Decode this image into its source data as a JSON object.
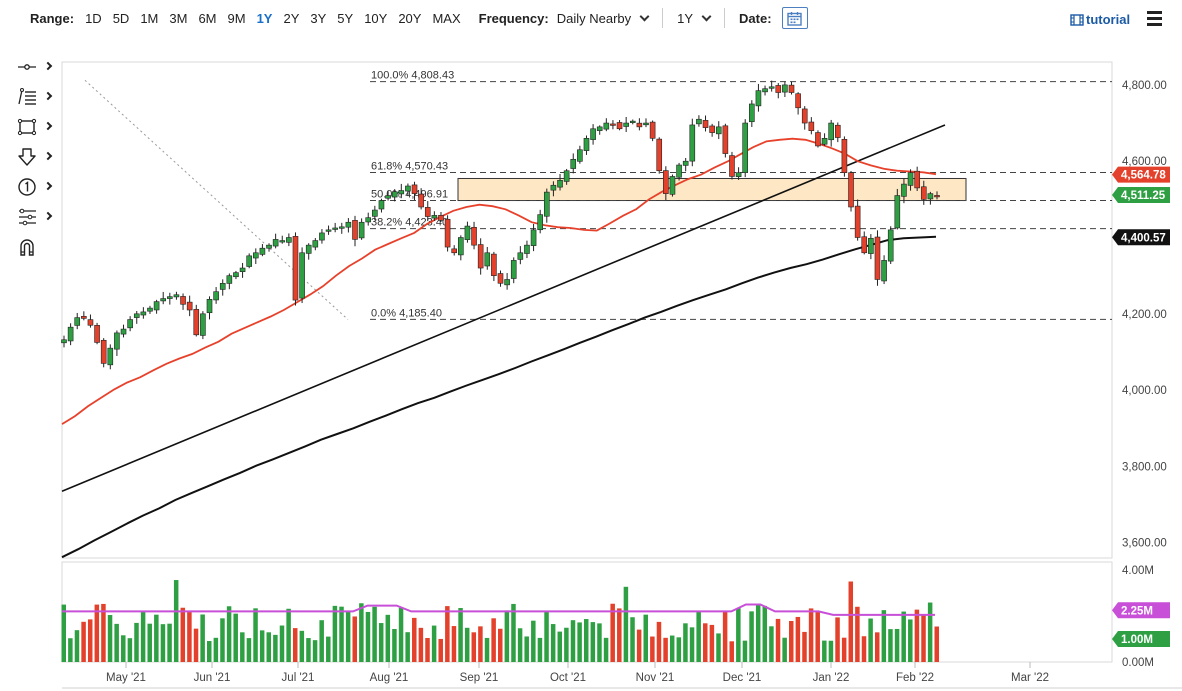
{
  "toolbar": {
    "range_label": "Range:",
    "ranges": [
      "1D",
      "5D",
      "1M",
      "3M",
      "6M",
      "9M",
      "1Y",
      "2Y",
      "3Y",
      "5Y",
      "10Y",
      "20Y",
      "MAX"
    ],
    "active_range": "1Y",
    "frequency_label": "Frequency:",
    "frequency_value": "Daily Nearby",
    "period_value": "1Y",
    "date_label": "Date:",
    "tutorial_label": "tutorial"
  },
  "side_tools": [
    "crosshair-icon",
    "line-tools-icon",
    "shape-tools-icon",
    "arrow-down-icon",
    "number-marker-icon",
    "fibonacci-tools-icon",
    "magnet-icon"
  ],
  "colors": {
    "up": "#2ea043",
    "down": "#e3412b",
    "ma_short": "#e8412b",
    "ma_long": "#111111",
    "volume_avg": "#c84fd8",
    "zone_fill": "#fde7c4",
    "link": "#1b5aa5"
  },
  "chart_data": {
    "type": "candlestick",
    "y_ticks": [
      "4,800.00",
      "4,600.00",
      "4,400.00",
      "4,200.00",
      "4,000.00",
      "3,800.00",
      "3,600.00"
    ],
    "ylim": [
      3560,
      4860
    ],
    "x_ticks": [
      "May '21",
      "Jun '21",
      "Jul '21",
      "Aug '21",
      "Sep '21",
      "Oct '21",
      "Nov '21",
      "Dec '21",
      "Jan '22",
      "Feb '22",
      "Mar '22"
    ],
    "fib_levels": [
      {
        "label": "100.0% 4,808.43",
        "value": 4808.43
      },
      {
        "label": "61.8% 4,570.43",
        "value": 4570.43
      },
      {
        "label": "50.0% 4,496.91",
        "value": 4496.91
      },
      {
        "label": "38.2% 4,423.40",
        "value": 4423.4
      },
      {
        "label": "0.0% 4,185.40",
        "value": 4185.4
      }
    ],
    "price_tags": [
      {
        "label": "4,564.78",
        "value": 4564.78,
        "color": "#e3412b"
      },
      {
        "label": "4,511.25",
        "value": 4511.25,
        "color": "#2ea043"
      },
      {
        "label": "4,400.57",
        "value": 4400.57,
        "color": "#111111"
      }
    ],
    "volume": {
      "y_ticks": [
        "4.00M",
        "0.00M"
      ],
      "tags": [
        {
          "label": "2.25M",
          "value": 2.25,
          "color": "#c84fd8"
        },
        {
          "label": "1.00M",
          "value": 1.0,
          "color": "#2ea043"
        }
      ]
    },
    "series_close": [
      4132,
      4165,
      4190,
      4188,
      4170,
      4125,
      4070,
      4110,
      4150,
      4160,
      4185,
      4200,
      4205,
      4215,
      4232,
      4240,
      4245,
      4250,
      4225,
      4210,
      4145,
      4200,
      4238,
      4258,
      4280,
      4300,
      4308,
      4320,
      4352,
      4360,
      4372,
      4380,
      4395,
      4392,
      4400,
      4236,
      4360,
      4380,
      4392,
      4412,
      4420,
      4425,
      4428,
      4440,
      4395,
      4440,
      4452,
      4472,
      4497,
      4510,
      4520,
      4523,
      4535,
      4515,
      4480,
      4455,
      4458,
      4445,
      4375,
      4360,
      4400,
      4430,
      4380,
      4320,
      4360,
      4300,
      4280,
      4290,
      4340,
      4360,
      4380,
      4420,
      4460,
      4519,
      4537,
      4550,
      4575,
      4605,
      4630,
      4660,
      4685,
      4690,
      4700,
      4697,
      4685,
      4700,
      4705,
      4690,
      4700,
      4660,
      4575,
      4515,
      4560,
      4590,
      4600,
      4695,
      4710,
      4688,
      4675,
      4690,
      4620,
      4560,
      4570,
      4700,
      4750,
      4785,
      4790,
      4795,
      4780,
      4800,
      4780,
      4740,
      4700,
      4680,
      4640,
      4660,
      4700,
      4662,
      4570,
      4480,
      4400,
      4360,
      4398,
      4290,
      4340,
      4420,
      4510,
      4540,
      4570,
      4530,
      4500,
      4515,
      4510
    ],
    "ma_short_close": [
      3911,
      3932,
      3958,
      3980,
      4002,
      4020,
      4034,
      4052,
      4069,
      4083,
      4095,
      4112,
      4127,
      4148,
      4163,
      4178,
      4193,
      4210,
      4230,
      4250,
      4272,
      4300,
      4325,
      4345,
      4368,
      4383,
      4398,
      4412,
      4436,
      4454,
      4470,
      4480,
      4486,
      4482,
      4474,
      4458,
      4440,
      4432,
      4427,
      4425,
      4420,
      4418,
      4437,
      4457,
      4474,
      4500,
      4520,
      4537,
      4553,
      4565,
      4583,
      4599,
      4618,
      4637,
      4652,
      4656,
      4659,
      4656,
      4646,
      4634,
      4620,
      4600,
      4589,
      4580,
      4575,
      4573,
      4571,
      4566
    ],
    "ma_long_close": [
      3562,
      3583,
      3606,
      3628,
      3650,
      3671,
      3690,
      3712,
      3730,
      3748,
      3766,
      3783,
      3802,
      3818,
      3835,
      3852,
      3870,
      3885,
      3900,
      3917,
      3933,
      3950,
      3966,
      3980,
      3996,
      4012,
      4027,
      4042,
      4058,
      4075,
      4091,
      4107,
      4124,
      4140,
      4157,
      4173,
      4190,
      4205,
      4221,
      4236,
      4250,
      4264,
      4280,
      4295,
      4308,
      4320,
      4330,
      4342,
      4356,
      4369,
      4381,
      4393,
      4398,
      4400,
      4402
    ],
    "trend_lines": [
      {
        "name": "upper-trendline",
        "from": [
          0,
          3735
        ],
        "to": [
          1,
          4695
        ]
      },
      {
        "name": "fib-anchor-line",
        "from": [
          0,
          4812
        ],
        "to": [
          1,
          4185
        ]
      }
    ]
  }
}
